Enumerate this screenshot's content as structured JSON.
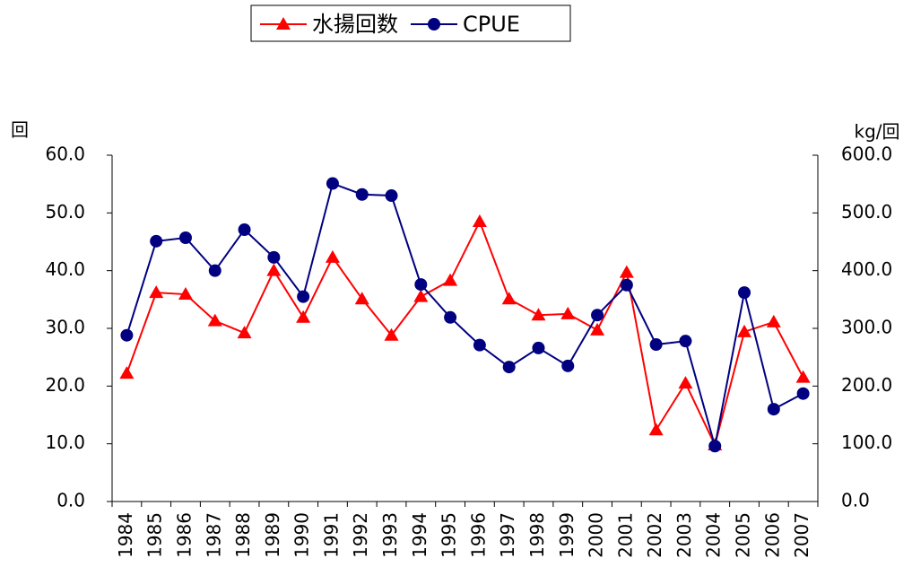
{
  "chart_data": {
    "type": "line",
    "categories": [
      "1984",
      "1985",
      "1986",
      "1987",
      "1988",
      "1989",
      "1990",
      "1991",
      "1992",
      "1993",
      "1994",
      "1995",
      "1996",
      "1997",
      "1998",
      "1999",
      "2000",
      "2001",
      "2002",
      "2003",
      "2004",
      "2005",
      "2006",
      "2007"
    ],
    "series": [
      {
        "name": "水揚回数",
        "color": "#ff0000",
        "marker": "triangle",
        "values": [
          22.2,
          36.2,
          35.9,
          31.3,
          29.2,
          40.0,
          31.9,
          42.3,
          35.1,
          28.8,
          35.5,
          38.3,
          48.5,
          35.1,
          32.3,
          32.5,
          29.7,
          39.7,
          12.4,
          20.5,
          9.8,
          29.4,
          31.1,
          21.5
        ]
      },
      {
        "name": "CPUE",
        "color": "#000080",
        "marker": "circle",
        "axis": "y2",
        "values": [
          288,
          451,
          457,
          400,
          471,
          423,
          355,
          551,
          532,
          530,
          376,
          319,
          271,
          233,
          266,
          235,
          323,
          375,
          272,
          278,
          96,
          362,
          160,
          187
        ]
      }
    ],
    "ylabel": "回",
    "y2label": "kg/回",
    "ylim": [
      0,
      60
    ],
    "yticks": [
      {
        "value": 0,
        "label": "0.0"
      },
      {
        "value": 10,
        "label": "10.0"
      },
      {
        "value": 20,
        "label": "20.0"
      },
      {
        "value": 30,
        "label": "30.0"
      },
      {
        "value": 40,
        "label": "40.0"
      },
      {
        "value": 50,
        "label": "50.0"
      },
      {
        "value": 60,
        "label": "60.0"
      }
    ],
    "y2lim": [
      0,
      600
    ],
    "y2ticks": [
      {
        "value": 0,
        "label": "0.0"
      },
      {
        "value": 100,
        "label": "100.0"
      },
      {
        "value": 200,
        "label": "200.0"
      },
      {
        "value": 300,
        "label": "300.0"
      },
      {
        "value": 400,
        "label": "400.0"
      },
      {
        "value": 500,
        "label": "500.0"
      },
      {
        "value": 600,
        "label": "600.0"
      }
    ],
    "grid": false,
    "legend": "top"
  }
}
